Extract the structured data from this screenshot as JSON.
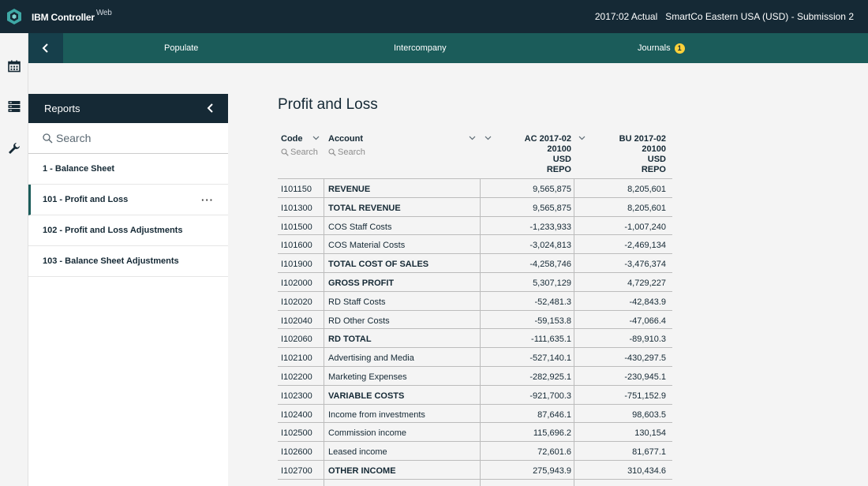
{
  "header": {
    "app_name": "IBM Controller",
    "app_suffix": "Web",
    "period": "2017:02 Actual",
    "entity": "SmartCo Eastern USA (USD) - Submission 2"
  },
  "tabs": [
    {
      "label": "Populate"
    },
    {
      "label": "Intercompany"
    },
    {
      "label": "Journals",
      "badge": "1"
    }
  ],
  "reports_panel": {
    "title": "Reports",
    "search_placeholder": "Search",
    "items": [
      {
        "label": "1 - Balance Sheet"
      },
      {
        "label": "101 - Profit and Loss",
        "more": "···"
      },
      {
        "label": "102 - Profit and Loss Adjustments"
      },
      {
        "label": "103 - Balance Sheet Adjustments"
      }
    ]
  },
  "report": {
    "title": "Profit and Loss",
    "columns": {
      "code": "Code",
      "code_search": "Search",
      "account": "Account",
      "account_search": "Search",
      "ac_line1": "AC 2017-02",
      "ac_line2": "20100",
      "ac_line3": "USD",
      "ac_line4": "REPO",
      "bu_line1": "BU 2017-02",
      "bu_line2": "20100",
      "bu_line3": "USD",
      "bu_line4": "REPO"
    },
    "rows": [
      {
        "code": "I101150",
        "account": "REVENUE",
        "ac": "9,565,875",
        "bu": "8,205,601",
        "bold": true
      },
      {
        "code": "I101300",
        "account": "TOTAL REVENUE",
        "ac": "9,565,875",
        "bu": "8,205,601",
        "bold": true
      },
      {
        "code": "I101500",
        "account": "COS Staff Costs",
        "ac": "-1,233,933",
        "bu": "-1,007,240",
        "bold": false
      },
      {
        "code": "I101600",
        "account": "COS Material Costs",
        "ac": "-3,024,813",
        "bu": "-2,469,134",
        "bold": false
      },
      {
        "code": "I101900",
        "account": "TOTAL COST OF SALES",
        "ac": "-4,258,746",
        "bu": "-3,476,374",
        "bold": true
      },
      {
        "code": "I102000",
        "account": "GROSS PROFIT",
        "ac": "5,307,129",
        "bu": "4,729,227",
        "bold": true
      },
      {
        "code": "I102020",
        "account": "RD Staff Costs",
        "ac": "-52,481.3",
        "bu": "-42,843.9",
        "bold": false
      },
      {
        "code": "I102040",
        "account": "RD Other Costs",
        "ac": "-59,153.8",
        "bu": "-47,066.4",
        "bold": false
      },
      {
        "code": "I102060",
        "account": "RD TOTAL",
        "ac": "-111,635.1",
        "bu": "-89,910.3",
        "bold": true
      },
      {
        "code": "I102100",
        "account": "Advertising and Media",
        "ac": "-527,140.1",
        "bu": "-430,297.5",
        "bold": false
      },
      {
        "code": "I102200",
        "account": "Marketing Expenses",
        "ac": "-282,925.1",
        "bu": "-230,945.1",
        "bold": false
      },
      {
        "code": "I102300",
        "account": "VARIABLE COSTS",
        "ac": "-921,700.3",
        "bu": "-751,152.9",
        "bold": true
      },
      {
        "code": "I102400",
        "account": "Income from investments",
        "ac": "87,646.1",
        "bu": "98,603.5",
        "bold": false
      },
      {
        "code": "I102500",
        "account": "Commission income",
        "ac": "115,696.2",
        "bu": "130,154",
        "bold": false
      },
      {
        "code": "I102600",
        "account": "Leased income",
        "ac": "72,601.6",
        "bu": "81,677.1",
        "bold": false
      },
      {
        "code": "I102700",
        "account": "OTHER INCOME",
        "ac": "275,943.9",
        "bu": "310,434.6",
        "bold": true
      }
    ]
  }
}
